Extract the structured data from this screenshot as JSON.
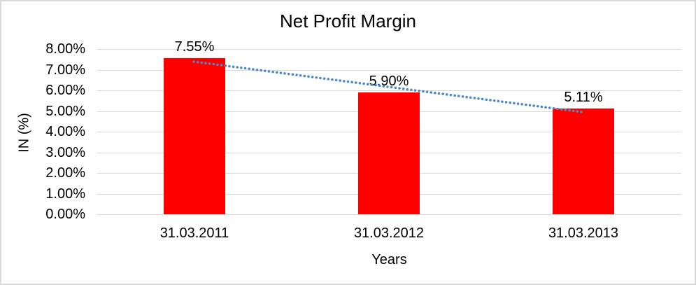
{
  "chart_data": {
    "type": "bar",
    "title": "Net Profit Margin",
    "xlabel": "Years",
    "ylabel": "IN (%)",
    "categories": [
      "31.03.2011",
      "31.03.2012",
      "31.03.2013"
    ],
    "values": [
      7.55,
      5.9,
      5.11
    ],
    "data_labels": [
      "7.55%",
      "5.90%",
      "5.11%"
    ],
    "y_ticks": [
      "0.00%",
      "1.00%",
      "2.00%",
      "3.00%",
      "4.00%",
      "5.00%",
      "6.00%",
      "7.00%",
      "8.00%"
    ],
    "ylim": [
      0,
      8
    ],
    "grid": true,
    "legend": "none",
    "bar_color": "#ff0000",
    "gridline_color": "#d9d9d9",
    "frame_border_color": "#d9d9d9",
    "trendline": {
      "type": "linear",
      "style": "dotted",
      "color": "#4a89c8",
      "start_value_pct": 7.39,
      "end_value_pct": 4.95
    }
  }
}
